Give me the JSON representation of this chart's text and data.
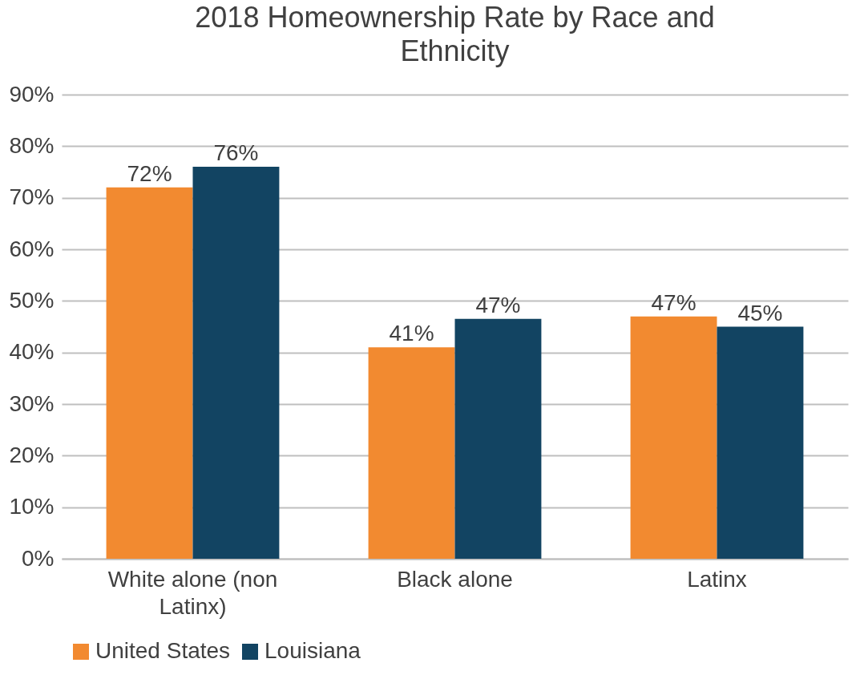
{
  "chart_data": {
    "type": "bar",
    "title": "2018 Homeownership Rate by Race and Ethnicity",
    "categories": [
      "White alone (non Latinx)",
      "Black alone",
      "Latinx"
    ],
    "series": [
      {
        "name": "United States",
        "color": "#f28a30",
        "values": [
          72,
          41,
          47
        ],
        "value_labels": [
          "72%",
          "41%",
          "47%"
        ]
      },
      {
        "name": "Louisiana",
        "color": "#124462",
        "values": [
          76,
          46.5,
          45
        ],
        "value_labels": [
          "76%",
          "47%",
          "45%"
        ]
      }
    ],
    "ylim": [
      0,
      90
    ],
    "yticks": [
      {
        "value": 0,
        "label": "0%"
      },
      {
        "value": 10,
        "label": "10%"
      },
      {
        "value": 20,
        "label": "20%"
      },
      {
        "value": 30,
        "label": "30%"
      },
      {
        "value": 40,
        "label": "40%"
      },
      {
        "value": 50,
        "label": "50%"
      },
      {
        "value": 60,
        "label": "60%"
      },
      {
        "value": 70,
        "label": "70%"
      },
      {
        "value": 80,
        "label": "80%"
      },
      {
        "value": 90,
        "label": "90%"
      }
    ],
    "grid": "y",
    "legend": "bottom"
  }
}
